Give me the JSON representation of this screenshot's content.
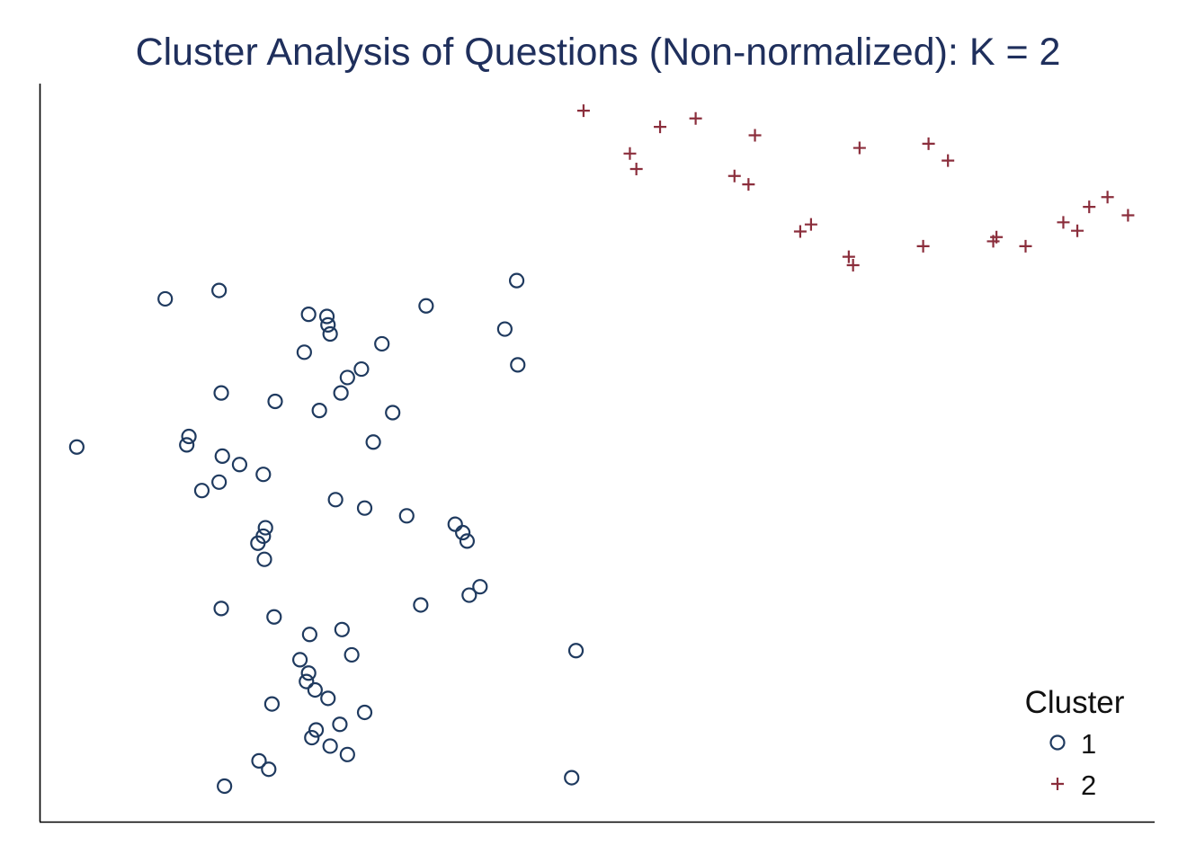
{
  "chart_data": {
    "type": "scatter",
    "title": "Cluster Analysis of Questions (Non-normalized): K = 2",
    "xlabel": "",
    "ylabel": "",
    "xlim": [
      0,
      100
    ],
    "ylim": [
      0,
      100
    ],
    "grid": false,
    "legend": {
      "title": "Cluster",
      "position": "bottom-right"
    },
    "series": [
      {
        "name": "1",
        "marker": "hollow-circle",
        "color": "#1f3a5f",
        "points": [
          [
            1.7,
            50.8
          ],
          [
            9.9,
            71.9
          ],
          [
            14.9,
            73.1
          ],
          [
            15.1,
            58.5
          ],
          [
            12.1,
            52.3
          ],
          [
            11.9,
            51.1
          ],
          [
            15.2,
            49.5
          ],
          [
            16.8,
            48.3
          ],
          [
            13.3,
            44.6
          ],
          [
            14.9,
            45.8
          ],
          [
            19.0,
            46.9
          ],
          [
            19.2,
            39.3
          ],
          [
            18.5,
            37.1
          ],
          [
            19.0,
            38.1
          ],
          [
            19.1,
            34.8
          ],
          [
            15.1,
            27.8
          ],
          [
            23.2,
            69.7
          ],
          [
            24.9,
            69.4
          ],
          [
            25.0,
            68.2
          ],
          [
            25.2,
            66.9
          ],
          [
            22.8,
            64.3
          ],
          [
            26.8,
            60.7
          ],
          [
            24.2,
            56.0
          ],
          [
            26.2,
            58.5
          ],
          [
            30.0,
            65.5
          ],
          [
            28.1,
            61.9
          ],
          [
            20.1,
            57.3
          ],
          [
            31.0,
            55.7
          ],
          [
            29.2,
            51.5
          ],
          [
            28.4,
            42.1
          ],
          [
            25.7,
            43.3
          ],
          [
            34.1,
            70.9
          ],
          [
            42.5,
            74.5
          ],
          [
            41.4,
            67.6
          ],
          [
            42.6,
            62.5
          ],
          [
            32.3,
            41.0
          ],
          [
            36.8,
            39.8
          ],
          [
            37.5,
            38.6
          ],
          [
            37.9,
            37.4
          ],
          [
            39.1,
            30.9
          ],
          [
            38.1,
            29.7
          ],
          [
            33.6,
            28.3
          ],
          [
            26.3,
            24.8
          ],
          [
            20.0,
            26.6
          ],
          [
            23.3,
            24.1
          ],
          [
            27.2,
            21.2
          ],
          [
            22.4,
            20.5
          ],
          [
            23.2,
            18.6
          ],
          [
            23.0,
            17.4
          ],
          [
            23.8,
            16.2
          ],
          [
            25.0,
            15.0
          ],
          [
            19.8,
            14.2
          ],
          [
            28.4,
            13.0
          ],
          [
            26.1,
            11.3
          ],
          [
            23.9,
            10.5
          ],
          [
            23.5,
            9.4
          ],
          [
            25.2,
            8.2
          ],
          [
            26.8,
            7.0
          ],
          [
            18.6,
            6.1
          ],
          [
            19.5,
            4.9
          ],
          [
            15.4,
            2.5
          ],
          [
            48.0,
            21.8
          ],
          [
            47.6,
            3.7
          ]
        ]
      },
      {
        "name": "2",
        "marker": "plus",
        "color": "#8b2e3c",
        "points": [
          [
            48.7,
            98.7
          ],
          [
            55.8,
            96.4
          ],
          [
            59.1,
            97.6
          ],
          [
            64.6,
            95.2
          ],
          [
            80.7,
            94.0
          ],
          [
            53.0,
            92.6
          ],
          [
            53.6,
            90.4
          ],
          [
            62.7,
            89.4
          ],
          [
            64.0,
            88.2
          ],
          [
            82.5,
            91.6
          ],
          [
            74.3,
            93.4
          ],
          [
            95.6,
            85.0
          ],
          [
            97.3,
            86.4
          ],
          [
            99.2,
            83.8
          ],
          [
            68.8,
            81.5
          ],
          [
            69.8,
            82.5
          ],
          [
            73.3,
            77.9
          ],
          [
            73.7,
            76.7
          ],
          [
            86.7,
            80.1
          ],
          [
            87.0,
            80.7
          ],
          [
            89.7,
            79.4
          ],
          [
            93.2,
            82.8
          ],
          [
            94.5,
            81.6
          ],
          [
            80.2,
            79.4
          ]
        ]
      }
    ]
  }
}
